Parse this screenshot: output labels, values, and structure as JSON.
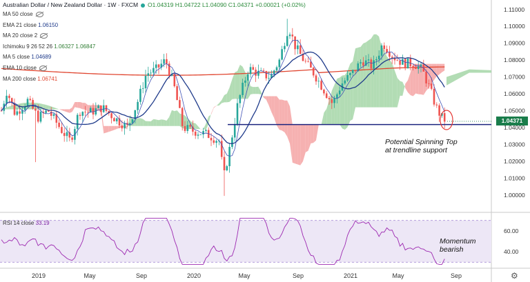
{
  "header": {
    "symbol": "Australian Dollar / New Zealand Dollar · 1W · FXCM",
    "ohlc": "O1.04319  H1.04722  L1.04090  C1.04371  +0.00021 (+0.02%)"
  },
  "legend": [
    {
      "label": "MA 50 close",
      "value": ""
    },
    {
      "label": "EMA 21 close",
      "value": "1.06150"
    },
    {
      "label": "MA 20 close 2",
      "value": ""
    },
    {
      "label": "Ichimoku 9 26 52 26",
      "value": "1.06327  1.06847"
    },
    {
      "label": "MA 5 close",
      "value": "1.04689"
    },
    {
      "label": "EMA 10 close",
      "value": ""
    },
    {
      "label": "MA 200 close",
      "value": "1.06741"
    }
  ],
  "annotations": {
    "pattern_line1": "Potential Spinning Top",
    "pattern_line2": "at trendline support",
    "momentum_line1": "Momentum",
    "momentum_line2": "bearish"
  },
  "rsi": {
    "label": "RSI 14 close",
    "value": "33.19"
  },
  "last_price": "1.04371",
  "colors": {
    "bull": "#26a69a",
    "bear": "#ef5350",
    "ma200": "#e0452f",
    "ma5": "#1e3a8a",
    "cloud_bull": "#a5d6a7",
    "cloud_bear": "#f4a3a3",
    "trendline": "#1a237e"
  },
  "chart_data": {
    "type": "candlestick",
    "x_ticks": [
      "2019",
      "May",
      "Sep",
      "2020",
      "May",
      "Sep",
      "2021",
      "May",
      "Sep"
    ],
    "y_ticks": [
      "1.11000",
      "1.10000",
      "1.09000",
      "1.08000",
      "1.07000",
      "1.06000",
      "1.05000",
      "1.04000",
      "1.03000",
      "1.02000",
      "1.01000",
      "1.00000"
    ],
    "y_range": [
      0.993,
      1.114
    ],
    "rsi_ticks": [
      "60.00",
      "40.00"
    ],
    "rsi_range": [
      25,
      75
    ],
    "rsi_band": [
      30,
      70
    ],
    "trendline_level": 1.0418
  }
}
